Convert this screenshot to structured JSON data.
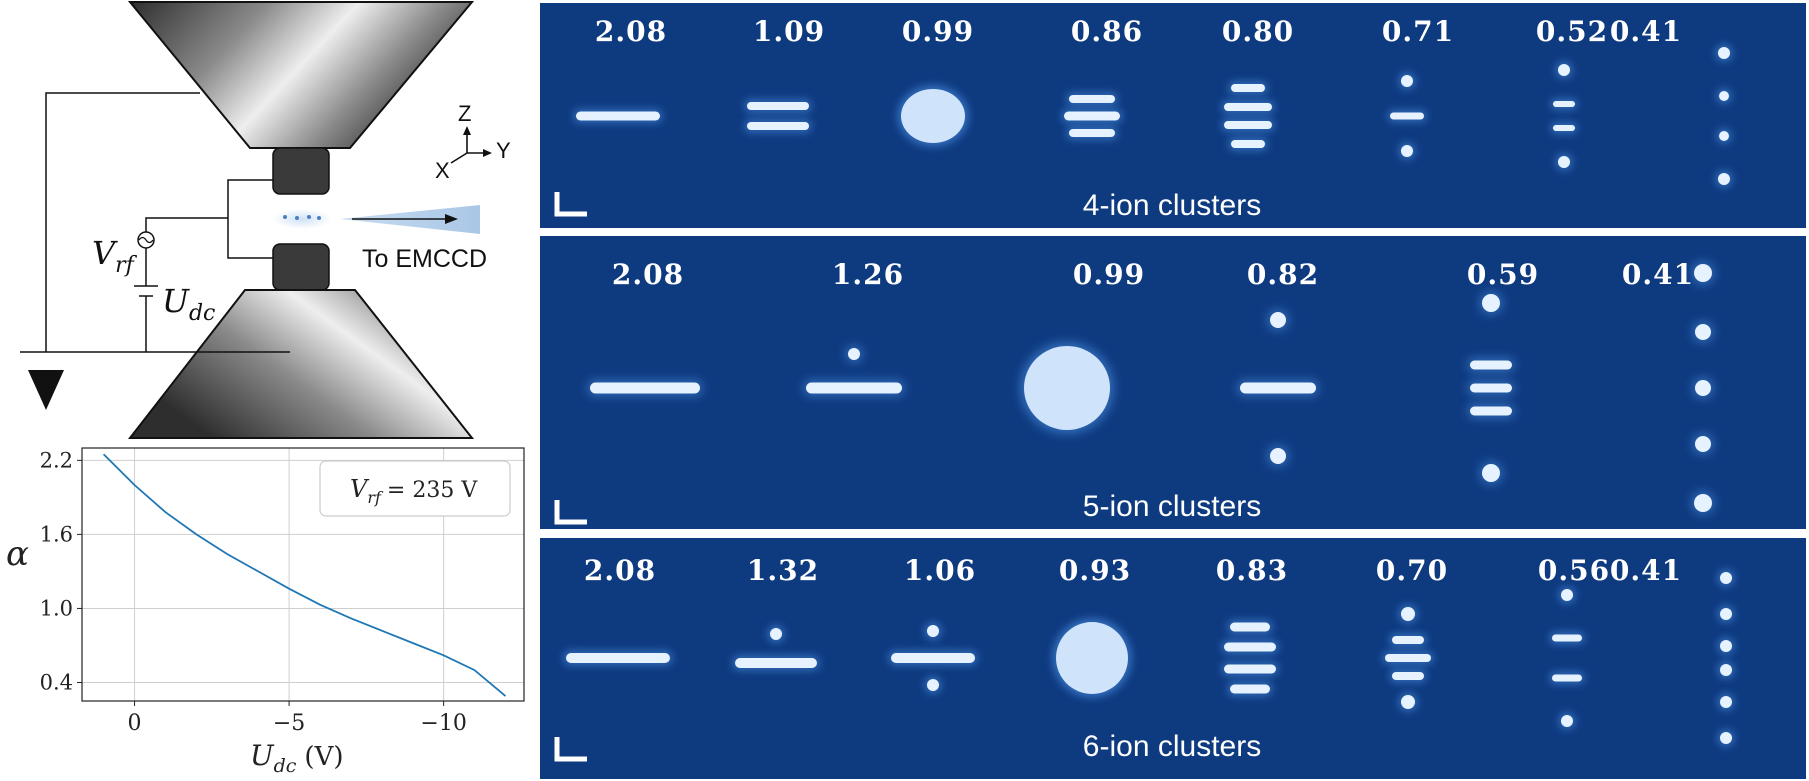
{
  "schematic": {
    "axes": {
      "z": "Z",
      "x": "X",
      "y": "Y"
    },
    "vrf_base": "V",
    "vrf_sub": "rf",
    "udc_base": "U",
    "udc_sub": "dc",
    "detector_label": "To EMCCD"
  },
  "chart_data": {
    "type": "line",
    "x": [
      -1,
      0,
      1,
      2,
      3,
      4,
      5,
      6,
      7,
      8,
      9,
      10,
      11,
      12
    ],
    "series": [
      {
        "values": [
          2.25,
          2.0,
          1.78,
          1.6,
          1.44,
          1.3,
          1.16,
          1.03,
          0.92,
          0.82,
          0.72,
          0.62,
          0.5,
          0.29
        ]
      }
    ],
    "xticks": [
      0,
      5,
      10
    ],
    "xtick_labels": [
      "0",
      "−5",
      "−10"
    ],
    "yticks": [
      0.4,
      1.0,
      1.6,
      2.2
    ],
    "ytick_labels": [
      "0.4",
      "1.0",
      "1.6",
      "2.2"
    ],
    "xlim": [
      -1.7,
      12.6
    ],
    "ylim": [
      0.25,
      2.3
    ],
    "xlabel_base": "U",
    "xlabel_sub": "dc",
    "xlabel_unit": "(V)",
    "ylabel": "α",
    "legend": {
      "base": "V",
      "sub": "rf",
      "rest": "= 235 V"
    },
    "grid": true,
    "line_color": "#1f77b4"
  },
  "panels": [
    {
      "title": "4-ion clusters",
      "alphas": [
        "2.08",
        "1.09",
        "0.99",
        "0.86",
        "0.80",
        "0.71",
        "0.52",
        "0.41"
      ]
    },
    {
      "title": "5-ion clusters",
      "alphas": [
        "2.08",
        "1.26",
        "0.99",
        "0.82",
        "0.59",
        "0.41"
      ]
    },
    {
      "title": "6-ion clusters",
      "alphas": [
        "2.08",
        "1.32",
        "1.06",
        "0.93",
        "0.83",
        "0.70",
        "0.56",
        "0.41"
      ]
    }
  ],
  "colors": {
    "panel_bg": "#0e3a80",
    "ion": "#e6f2ff"
  }
}
